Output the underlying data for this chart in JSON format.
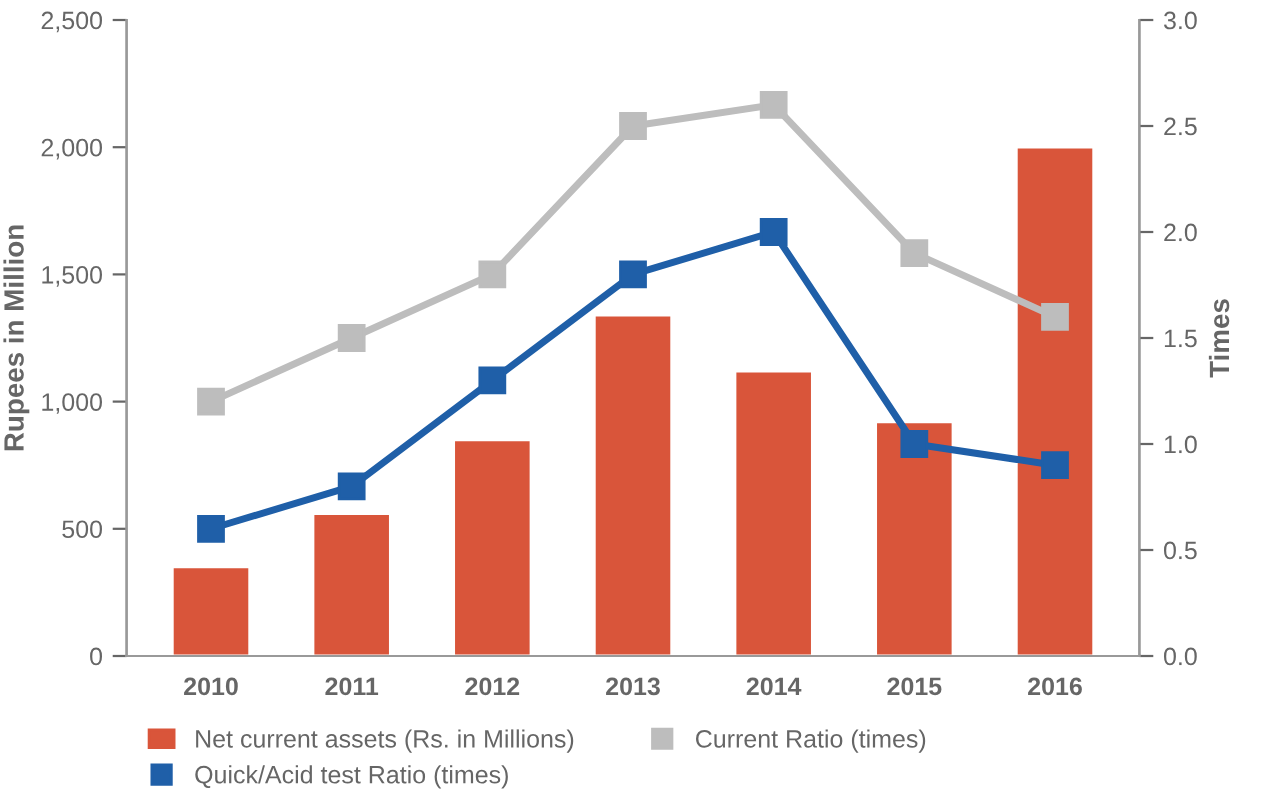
{
  "chart_data": {
    "type": "bar",
    "ylabel": "Rupees in Million",
    "y2label": "Times",
    "categories": [
      "2010",
      "2011",
      "2012",
      "2013",
      "2014",
      "2015",
      "2016"
    ],
    "series": [
      {
        "name": "Net current assets (Rs. in Millions)",
        "color": "#d9553a",
        "values": [
          350,
          560,
          850,
          1340,
          1120,
          920,
          2000
        ]
      },
      {
        "name": "Quick/Acid test Ratio (times)",
        "type": "line",
        "axis": "y2",
        "color": "#1f5fa8",
        "values": [
          0.6,
          0.8,
          1.3,
          1.8,
          2.0,
          1.0,
          0.9
        ]
      },
      {
        "name": "Current Ratio (times)",
        "type": "line",
        "axis": "y2",
        "color": "#bdbdbd",
        "values": [
          1.2,
          1.5,
          1.8,
          2.5,
          2.6,
          1.9,
          1.6
        ]
      }
    ],
    "ylim": [
      0,
      2500
    ],
    "yticks": [
      0,
      500,
      {
        "value": 1000,
        "label": "1,000"
      },
      {
        "value": 1500,
        "label": "1,500"
      },
      {
        "value": 2000,
        "label": "2,000"
      },
      {
        "value": 2500,
        "label": "2,500"
      }
    ],
    "y2lim": [
      0,
      3
    ],
    "y2ticks": [
      {
        "value": 0,
        "label": "0.0"
      },
      {
        "value": 0.5,
        "label": "0.5"
      },
      {
        "value": 1,
        "label": "1.0"
      },
      {
        "value": 1.5,
        "label": "1.5"
      },
      {
        "value": 2,
        "label": "2.0"
      },
      {
        "value": 2.5,
        "label": "2.5"
      },
      {
        "value": 3,
        "label": "3.0"
      }
    ],
    "marker": "square",
    "line_style": "solid",
    "legend": "bottom",
    "grid": false
  }
}
